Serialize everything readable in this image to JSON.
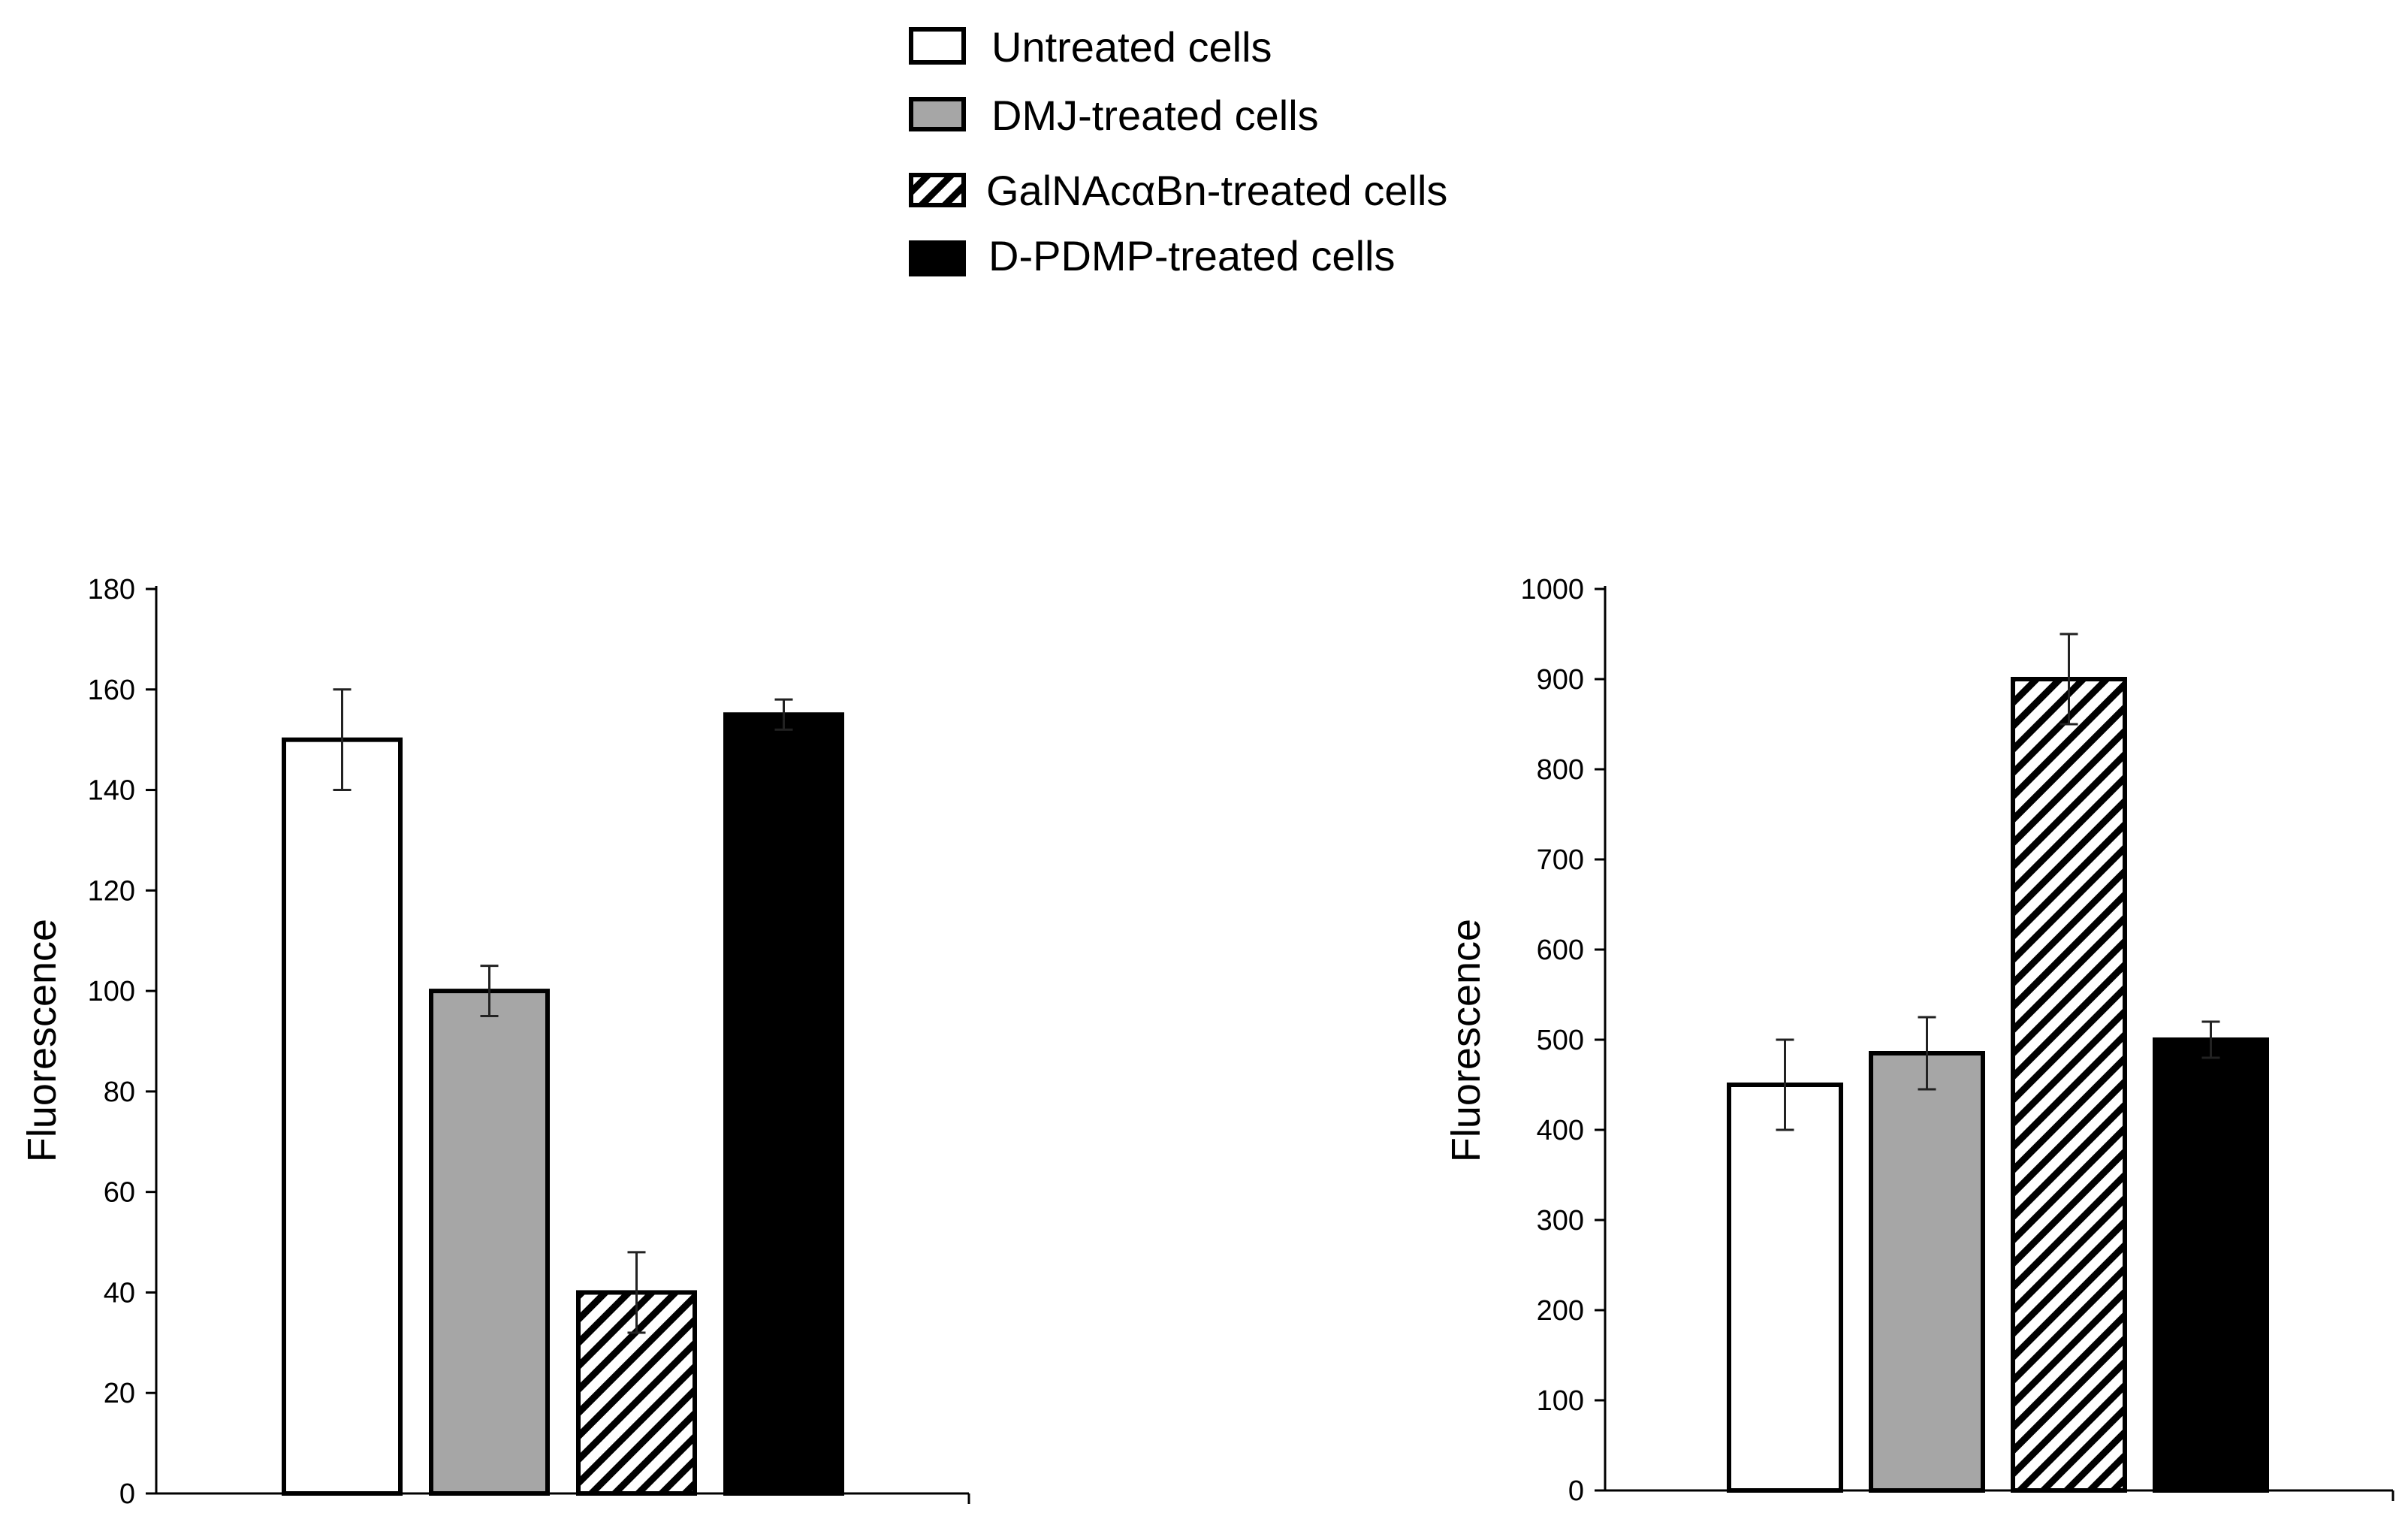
{
  "legend": {
    "items": [
      {
        "label": "Untreated cells",
        "fill": "white"
      },
      {
        "label": "DMJ-treated cells",
        "fill": "gray"
      },
      {
        "label": "GalNAcαBn-treated cells",
        "fill": "hatch"
      },
      {
        "label": "D-PDMP-treated cells",
        "fill": "black"
      }
    ]
  },
  "colors": {
    "white_bar": "#ffffff",
    "gray_bar": "#a6a6a6",
    "black_bar": "#000000",
    "outline": "#000000",
    "error_bar": "#222222"
  },
  "chart_data": [
    {
      "type": "bar",
      "title": "",
      "xlabel": "",
      "ylabel": "Fluorescence",
      "ylim": [
        0,
        180
      ],
      "yticks": [
        0,
        20,
        40,
        60,
        80,
        100,
        120,
        140,
        160,
        180
      ],
      "categories": [
        "Untreated cells",
        "DMJ-treated cells",
        "GalNAcαBn-treated cells",
        "D-PDMP-treated cells"
      ],
      "values": [
        150,
        100,
        40,
        155
      ],
      "errors": [
        10,
        5,
        8,
        3
      ],
      "fills": [
        "white",
        "gray",
        "hatch",
        "black"
      ]
    },
    {
      "type": "bar",
      "title": "",
      "xlabel": "",
      "ylabel": "Fluorescence",
      "ylim": [
        0,
        1000
      ],
      "yticks": [
        0,
        100,
        200,
        300,
        400,
        500,
        600,
        700,
        800,
        900,
        1000
      ],
      "categories": [
        "Untreated cells",
        "DMJ-treated cells",
        "GalNAcαBn-treated cells",
        "D-PDMP-treated cells"
      ],
      "values": [
        450,
        485,
        900,
        500
      ],
      "errors": [
        50,
        40,
        50,
        20
      ],
      "fills": [
        "white",
        "gray",
        "hatch",
        "black"
      ]
    }
  ]
}
